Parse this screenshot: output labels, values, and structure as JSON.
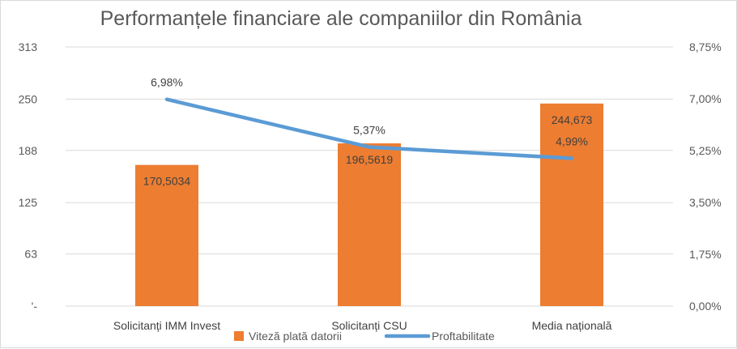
{
  "chart_data": {
    "type": "bar+line",
    "title": "Performanțele financiare ale companiilor din România",
    "categories": [
      "Solicitanți IMM Invest",
      "Solicitanți CSU",
      "Media națională"
    ],
    "series": [
      {
        "name": "Viteză plată datorii",
        "type": "bar",
        "axis": "left",
        "values": [
          170.5034,
          196.5619,
          244.673
        ],
        "labels": [
          "170,5034",
          "196,5619",
          "244,673"
        ],
        "color": "#ed7d31"
      },
      {
        "name": "Proftabilitate",
        "type": "line",
        "axis": "right",
        "values": [
          6.98,
          5.37,
          4.99
        ],
        "labels": [
          "6,98%",
          "5,37%",
          "4,99%"
        ],
        "color": "#5b9bd5"
      }
    ],
    "left_axis": {
      "ylim": [
        0,
        313
      ],
      "ticks": [
        0,
        63,
        125,
        188,
        250,
        313
      ],
      "tick_labels": [
        "'-",
        "63",
        "125",
        "188",
        "250",
        "313"
      ]
    },
    "right_axis": {
      "ylim": [
        0,
        8.75
      ],
      "ticks": [
        0,
        1.75,
        3.5,
        5.25,
        7,
        8.75
      ],
      "tick_labels": [
        "0,00%",
        "1,75%",
        "3,50%",
        "5,25%",
        "7,00%",
        "8,75%"
      ]
    },
    "grid": true,
    "legend": "bottom"
  }
}
